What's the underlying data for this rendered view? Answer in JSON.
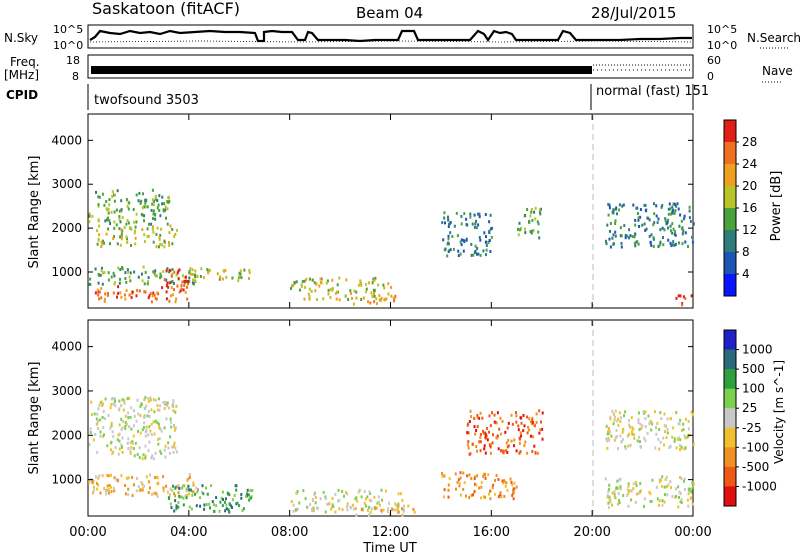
{
  "header": {
    "station": "Saskatoon (fitACF)",
    "beam": "Beam 04",
    "date": "28/Jul/2015"
  },
  "top_panels": {
    "nsky_label": "N.Sky",
    "nsky_ticks": [
      "10^5",
      "10^0"
    ],
    "nsearch_label": "N.Search",
    "nsearch_ticks": [
      "10^5",
      "10^0"
    ],
    "freq_label": "Freq.",
    "freq_unit": "[MHz]",
    "freq_ticks": [
      "18",
      "8"
    ],
    "nave_label": "Nave",
    "nave_ticks": [
      "60",
      "0"
    ],
    "cpid_label": "CPID",
    "cpid_programs": [
      "twofsound 3503",
      "normal (fast) 151"
    ]
  },
  "chart_data": [
    {
      "type": "heatmap",
      "name": "power",
      "ylabel": "Slant Range [km]",
      "ylim": [
        180,
        4600
      ],
      "yticks": [
        1000,
        2000,
        3000,
        4000
      ],
      "xlim": [
        0,
        24
      ],
      "xticks": [
        0,
        4,
        8,
        12,
        16,
        20,
        24
      ],
      "colorbar_label": "Power [dB]",
      "colorbar_ticks": [
        "4",
        "8",
        "12",
        "16",
        "20",
        "24",
        "28"
      ],
      "colorbar_colors": [
        "#0a14ff",
        "#1d55b4",
        "#2f7d7a",
        "#4aa23c",
        "#b8c52a",
        "#f0a020",
        "#f07020",
        "#e02018"
      ],
      "regions": [
        {
          "t": [
            0.0,
            3.2
          ],
          "r": [
            2100,
            2900
          ],
          "level": 3
        },
        {
          "t": [
            0.3,
            3.5
          ],
          "r": [
            1600,
            2100
          ],
          "level": 4
        },
        {
          "t": [
            0.0,
            4.5
          ],
          "r": [
            750,
            1150
          ],
          "level": 3
        },
        {
          "t": [
            0.2,
            4.0
          ],
          "r": [
            350,
            700
          ],
          "level": 6
        },
        {
          "t": [
            3.0,
            4.0
          ],
          "r": [
            600,
            1100
          ],
          "level": 7
        },
        {
          "t": [
            4.0,
            6.5
          ],
          "r": [
            800,
            1100
          ],
          "level": 4
        },
        {
          "t": [
            8.0,
            12.0
          ],
          "r": [
            400,
            900
          ],
          "level": 4
        },
        {
          "t": [
            10.5,
            12.5
          ],
          "r": [
            300,
            500
          ],
          "level": 5
        },
        {
          "t": [
            14.0,
            16.0
          ],
          "r": [
            1400,
            2400
          ],
          "level": 2
        },
        {
          "t": [
            17.0,
            18.0
          ],
          "r": [
            1800,
            2500
          ],
          "level": 3
        },
        {
          "t": [
            20.5,
            24.0
          ],
          "r": [
            1600,
            2600
          ],
          "level": 2
        },
        {
          "t": [
            23.3,
            24.0
          ],
          "r": [
            250,
            500
          ],
          "level": 7
        }
      ]
    },
    {
      "type": "heatmap",
      "name": "velocity",
      "ylabel": "Slant Range [km]",
      "ylim": [
        180,
        4600
      ],
      "yticks": [
        1000,
        2000,
        3000,
        4000
      ],
      "xlim": [
        0,
        24
      ],
      "xticks": [
        0,
        4,
        8,
        12,
        16,
        20,
        24
      ],
      "xlabel": "Time UT",
      "xtick_labels": [
        "00:00",
        "04:00",
        "08:00",
        "12:00",
        "16:00",
        "20:00",
        "00:00"
      ],
      "colorbar_label": "Velocity [m s^-1]",
      "colorbar_ticks": [
        "1000",
        "500",
        "100",
        "25",
        "-25",
        "-100",
        "-500",
        "-1000"
      ],
      "colorbar_colors": [
        "#2020c8",
        "#2a6a7a",
        "#2fa040",
        "#7cd050",
        "#c8c8c8",
        "#f0c030",
        "#f09020",
        "#f05818",
        "#e01010"
      ],
      "regions": [
        {
          "t": [
            0.0,
            3.5
          ],
          "r": [
            1500,
            2900
          ],
          "level": 4
        },
        {
          "t": [
            0.0,
            4.5
          ],
          "r": [
            650,
            1150
          ],
          "level": 5
        },
        {
          "t": [
            3.0,
            6.5
          ],
          "r": [
            300,
            900
          ],
          "level": 2
        },
        {
          "t": [
            8.0,
            12.5
          ],
          "r": [
            300,
            800
          ],
          "level": 4
        },
        {
          "t": [
            10.5,
            13.0
          ],
          "r": [
            230,
            450
          ],
          "level": 5
        },
        {
          "t": [
            15.0,
            18.0
          ],
          "r": [
            1600,
            2600
          ],
          "level": 7
        },
        {
          "t": [
            14.0,
            17.0
          ],
          "r": [
            600,
            1200
          ],
          "level": 6
        },
        {
          "t": [
            20.5,
            24.0
          ],
          "r": [
            1700,
            2600
          ],
          "level": 4
        },
        {
          "t": [
            20.5,
            24.0
          ],
          "r": [
            400,
            1100
          ],
          "level": 4
        }
      ]
    }
  ]
}
